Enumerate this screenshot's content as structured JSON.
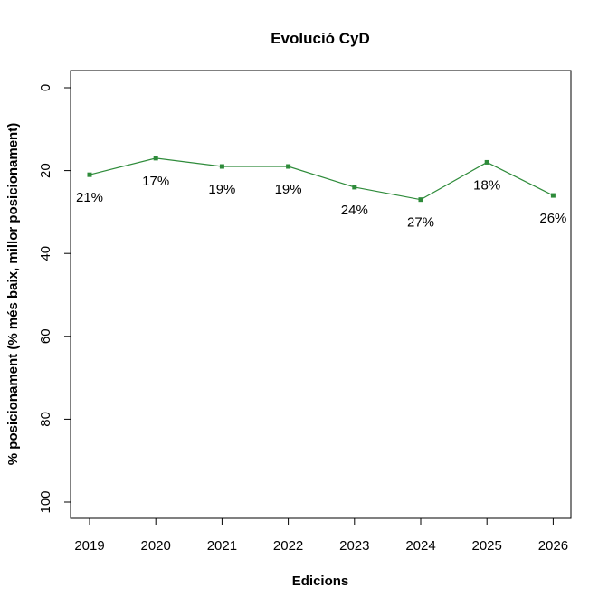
{
  "chart_data": {
    "type": "line",
    "title": "Evolució CyD",
    "xlabel": "Edicions",
    "ylabel": "% posicionament (% més baix, millor posicionament)",
    "categories": [
      "2019",
      "2020",
      "2021",
      "2022",
      "2023",
      "2024",
      "2025",
      "2026"
    ],
    "series": [
      {
        "values": [
          21,
          17,
          19,
          19,
          24,
          27,
          18,
          26
        ],
        "labels": [
          "21%",
          "17%",
          "19%",
          "19%",
          "24%",
          "27%",
          "18%",
          "26%"
        ],
        "color": "#2e8b3a"
      }
    ],
    "ylim": [
      0,
      100
    ],
    "y_reversed": true,
    "yticks": [
      0,
      20,
      40,
      60,
      80,
      100
    ],
    "grid": false,
    "legend": "none"
  }
}
